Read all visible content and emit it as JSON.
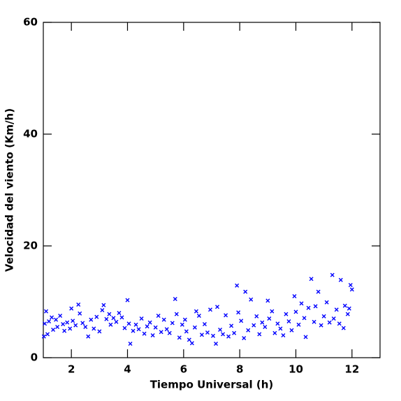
{
  "chart_data": {
    "type": "scatter",
    "x_label": "Tiempo Universal (h)",
    "y_label": "Velocidad del viento (Km/h)",
    "xlim": [
      1,
      13
    ],
    "xticks": [
      2,
      4,
      6,
      8,
      10,
      12
    ],
    "ylim": [
      0,
      60
    ],
    "yticks": [
      0,
      20,
      40,
      60
    ],
    "color": "#0000ff",
    "marker": "x",
    "x": [
      1.02,
      1.05,
      1.1,
      1.15,
      1.2,
      1.3,
      1.35,
      1.45,
      1.5,
      1.6,
      1.7,
      1.75,
      1.85,
      1.95,
      2.0,
      2.05,
      2.15,
      2.25,
      2.3,
      2.4,
      2.5,
      2.6,
      2.7,
      2.8,
      2.9,
      3.0,
      3.1,
      3.15,
      3.25,
      3.35,
      3.4,
      3.5,
      3.6,
      3.7,
      3.8,
      3.9,
      4.0,
      4.05,
      4.1,
      4.2,
      4.3,
      4.4,
      4.5,
      4.6,
      4.7,
      4.8,
      4.9,
      5.0,
      5.1,
      5.2,
      5.3,
      5.4,
      5.5,
      5.6,
      5.7,
      5.75,
      5.85,
      5.95,
      6.05,
      6.1,
      6.2,
      6.3,
      6.4,
      6.45,
      6.55,
      6.65,
      6.75,
      6.85,
      6.95,
      7.05,
      7.15,
      7.2,
      7.3,
      7.4,
      7.5,
      7.6,
      7.7,
      7.8,
      7.9,
      7.95,
      8.05,
      8.15,
      8.2,
      8.3,
      8.4,
      8.5,
      8.6,
      8.7,
      8.8,
      8.9,
      9.0,
      9.05,
      9.15,
      9.25,
      9.35,
      9.45,
      9.55,
      9.65,
      9.75,
      9.85,
      9.95,
      10.0,
      10.1,
      10.2,
      10.3,
      10.35,
      10.45,
      10.55,
      10.65,
      10.7,
      10.8,
      10.9,
      11.0,
      11.1,
      11.2,
      11.3,
      11.35,
      11.45,
      11.55,
      11.6,
      11.7,
      11.75,
      11.85,
      11.9,
      11.95,
      12.0
    ],
    "values": [
      3.8,
      6.1,
      8.3,
      4.2,
      6.5,
      7.2,
      5.0,
      6.8,
      5.5,
      7.5,
      6.0,
      4.8,
      6.3,
      5.2,
      8.8,
      6.6,
      5.8,
      9.5,
      7.9,
      6.2,
      5.5,
      3.8,
      6.8,
      5.2,
      7.3,
      4.7,
      8.5,
      9.4,
      6.9,
      7.8,
      5.9,
      7.1,
      6.4,
      8.0,
      7.2,
      5.3,
      10.3,
      6.1,
      2.5,
      4.8,
      5.9,
      5.1,
      7.0,
      4.3,
      5.6,
      6.3,
      4.0,
      5.4,
      7.5,
      4.6,
      6.8,
      5.1,
      4.4,
      6.2,
      10.5,
      7.8,
      3.6,
      5.9,
      6.8,
      4.7,
      3.2,
      2.6,
      5.4,
      8.3,
      7.5,
      4.1,
      6.0,
      4.5,
      8.6,
      3.9,
      2.5,
      9.1,
      5.0,
      4.2,
      7.6,
      3.8,
      5.7,
      4.4,
      12.9,
      8.1,
      6.6,
      3.5,
      11.8,
      4.9,
      10.4,
      5.8,
      7.4,
      4.2,
      6.3,
      5.5,
      10.2,
      7.0,
      8.3,
      4.4,
      6.1,
      5.2,
      4.0,
      7.8,
      6.5,
      4.9,
      11.0,
      8.2,
      5.9,
      9.7,
      7.1,
      3.7,
      8.9,
      14.1,
      6.4,
      9.2,
      11.8,
      5.8,
      7.4,
      9.9,
      6.3,
      14.8,
      7.0,
      8.6,
      6.1,
      13.9,
      5.3,
      9.3,
      7.8,
      8.8,
      13.0,
      12.2
    ]
  }
}
